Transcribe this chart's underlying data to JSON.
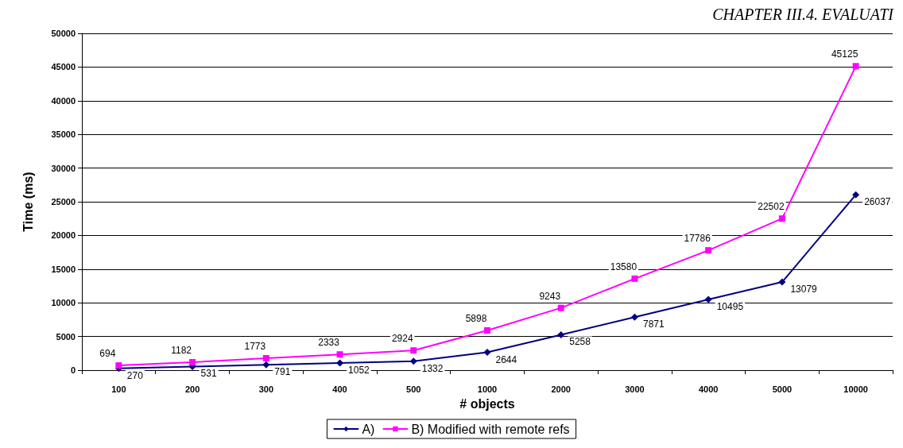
{
  "chart_data": {
    "type": "line",
    "xlabel": "# objects",
    "ylabel": "Time (ms)",
    "annotations": [
      "CHAPTER III.4. EVALUATI"
    ],
    "categories": [
      "100",
      "200",
      "300",
      "400",
      "500",
      "1000",
      "2000",
      "3000",
      "4000",
      "5000",
      "10000"
    ],
    "series": [
      {
        "name": "A)",
        "color": "#000080",
        "marker": "diamond",
        "values": [
          270,
          531,
          791,
          1052,
          1332,
          2644,
          5258,
          7871,
          10495,
          13079,
          26037
        ]
      },
      {
        "name": "B) Modified with remote refs",
        "color": "#ff00ff",
        "marker": "square",
        "values": [
          694,
          1182,
          1773,
          2333,
          2924,
          5898,
          9243,
          13580,
          17786,
          22502,
          45125
        ]
      }
    ],
    "ylim": [
      0,
      50000
    ],
    "yticks": [
      0,
      5000,
      10000,
      15000,
      20000,
      25000,
      30000,
      35000,
      40000,
      45000,
      50000
    ],
    "grid": "y",
    "legend": "bottom",
    "data_labels": true,
    "line_style": "solid"
  }
}
